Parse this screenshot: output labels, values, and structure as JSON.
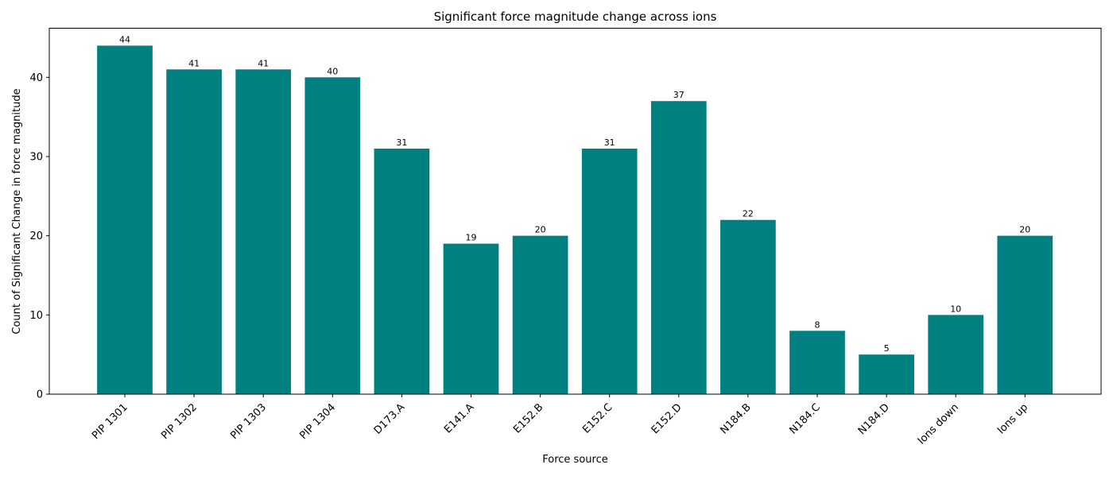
{
  "chart_data": {
    "type": "bar",
    "title": "Significant force magnitude change across ions",
    "xlabel": "Force source",
    "ylabel": "Count of Significant Change in force magnitude",
    "categories": [
      "PIP 1301",
      "PIP 1302",
      "PIP 1303",
      "PIP 1304",
      "D173.A",
      "E141.A",
      "E152.B",
      "E152.C",
      "E152.D",
      "N184.B",
      "N184.C",
      "N184.D",
      "Ions down",
      "Ions up"
    ],
    "values": [
      44,
      41,
      41,
      40,
      31,
      19,
      20,
      31,
      37,
      22,
      8,
      5,
      10,
      20
    ],
    "data_labels": [
      "44",
      "41",
      "41",
      "40",
      "31",
      "19",
      "20",
      "31",
      "37",
      "22",
      "8",
      "5",
      "10",
      "20"
    ],
    "ylim": [
      0,
      46.2
    ],
    "yticks": [
      0,
      10,
      20,
      30,
      40
    ],
    "ytick_labels": [
      "0",
      "10",
      "20",
      "30",
      "40"
    ],
    "bar_color": "#008080",
    "grid": false,
    "legend": "none"
  }
}
